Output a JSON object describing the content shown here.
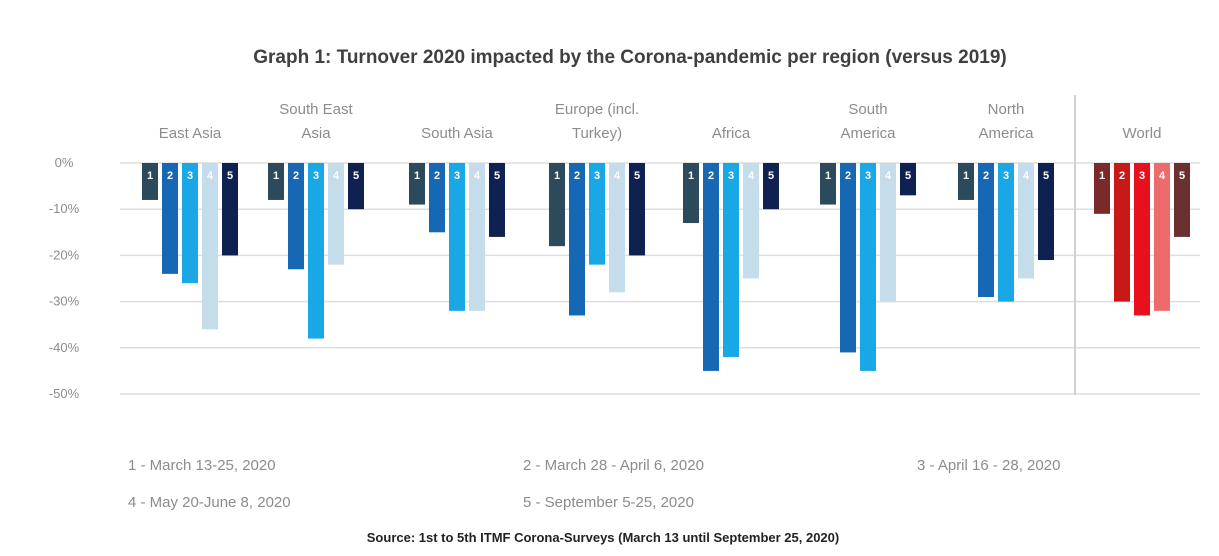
{
  "chart_data": {
    "type": "bar",
    "title": "Graph 1: Turnover 2020 impacted by the Corona-pandemic per region (versus 2019)",
    "categories": [
      [
        "East Asia"
      ],
      [
        "South East",
        "Asia"
      ],
      [
        "South Asia"
      ],
      [
        "Europe (incl.",
        "Turkey)"
      ],
      [
        "Africa"
      ],
      [
        "South",
        "America"
      ],
      [
        "North",
        "America"
      ],
      [
        "World"
      ]
    ],
    "series_labels": [
      "1",
      "2",
      "3",
      "4",
      "5"
    ],
    "values": [
      [
        -8,
        -24,
        -26,
        -36,
        -20
      ],
      [
        -8,
        -23,
        -38,
        -22,
        -10
      ],
      [
        -9,
        -15,
        -32,
        -32,
        -16
      ],
      [
        -18,
        -33,
        -22,
        -28,
        -20
      ],
      [
        -13,
        -45,
        -42,
        -25,
        -10
      ],
      [
        -9,
        -41,
        -45,
        -30,
        -7
      ],
      [
        -8,
        -29,
        -30,
        -25,
        -21
      ],
      [
        -11,
        -30,
        -33,
        -32,
        -16
      ]
    ],
    "yticks": [
      0,
      -10,
      -20,
      -30,
      -40,
      -50
    ],
    "ytick_labels": [
      "0%",
      "-10%",
      "-20%",
      "-30%",
      "-40%",
      "-50%"
    ],
    "ylim": [
      -50,
      0
    ],
    "grid": true,
    "colors_regions": [
      "#2d4a5c",
      "#1668b4",
      "#1aa7e6",
      "#c5dceb",
      "#0f2150"
    ],
    "colors_world": [
      "#7a2a2a",
      "#c81818",
      "#e8101c",
      "#ee6b6b",
      "#6a3030"
    ],
    "legend": [
      "1 - March 13-25, 2020",
      "2 - March 28 - April 6, 2020",
      "3 - April 16 - 28, 2020",
      "4 - May 20-June 8, 2020",
      "5 - September 5-25, 2020"
    ],
    "source": "Source: 1st to 5th ITMF Corona-Surveys (March 13 until September 25, 2020)"
  }
}
